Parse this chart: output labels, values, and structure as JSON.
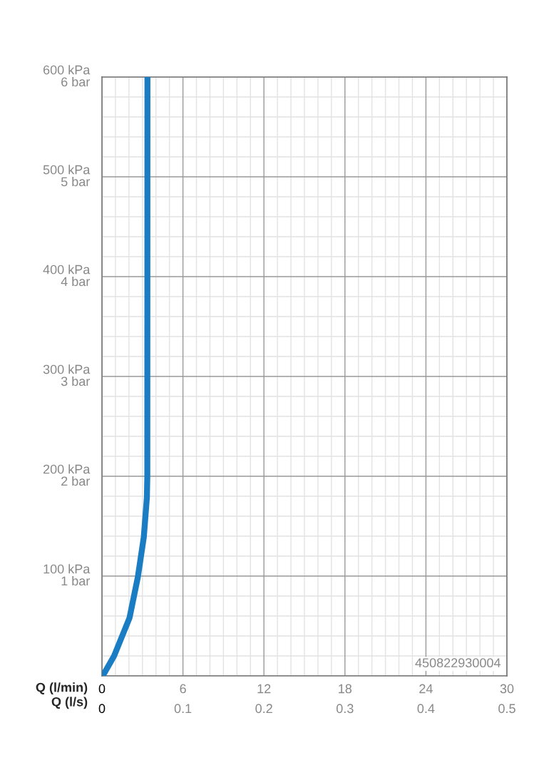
{
  "chart_data": {
    "type": "line",
    "x": [
      0,
      0.1,
      0.9,
      2.04,
      2.66,
      3.1,
      3.33,
      3.36,
      3.37
    ],
    "series": [
      {
        "color": "#1a7dc4",
        "values": [
          0,
          1,
          20,
          58,
          99,
          139,
          179,
          200,
          600
        ]
      }
    ],
    "xlim": [
      0,
      30
    ],
    "xticks": [
      0,
      6,
      12,
      18,
      24,
      30
    ],
    "x2lim": [
      0,
      0.5
    ],
    "x2ticks": [
      0,
      0.1,
      0.2,
      0.3,
      0.4,
      0.5
    ],
    "xlabel": "Q (l/min)",
    "x2label": "Q (l/s)",
    "ylim": [
      0,
      600
    ],
    "yticks": [
      {
        "value": 100,
        "label": "100 kPa"
      },
      {
        "value": 200,
        "label": "200 kPa"
      },
      {
        "value": 300,
        "label": "300 kPa"
      },
      {
        "value": 400,
        "label": "400 kPa"
      },
      {
        "value": 500,
        "label": "500 kPa"
      },
      {
        "value": 600,
        "label": "600 kPa"
      }
    ],
    "y2lim": [
      0,
      6
    ],
    "y2ticks": [
      {
        "value": 1,
        "label": "1 bar"
      },
      {
        "value": 2,
        "label": "2 bar"
      },
      {
        "value": 3,
        "label": "3 bar"
      },
      {
        "value": 4,
        "label": "4 bar"
      },
      {
        "value": 5,
        "label": "5 bar"
      },
      {
        "value": 6,
        "label": "6 bar"
      }
    ],
    "grid": true,
    "marker": "none",
    "line_style": "solid",
    "annotations": [
      "450822930004"
    ]
  }
}
